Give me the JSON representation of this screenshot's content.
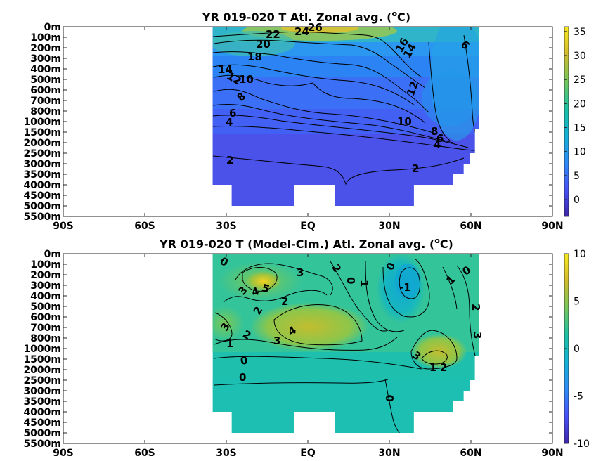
{
  "chart_data": [
    {
      "type": "heatmap",
      "title_main": "YR 019-020 T Atl. Zonal avg. (",
      "title_unit_sup": "o",
      "title_unit_end": "C)",
      "x_tick_labels": [
        "90S",
        "60S",
        "30S",
        "EQ",
        "30N",
        "60N",
        "90N"
      ],
      "x_ticks": [
        -90,
        -60,
        -30,
        0,
        30,
        60,
        90
      ],
      "y_tick_labels": [
        "0m",
        "100m",
        "200m",
        "300m",
        "400m",
        "500m",
        "600m",
        "700m",
        "800m",
        "1000m",
        "1500m",
        "2000m",
        "2500m",
        "3000m",
        "3500m",
        "4000m",
        "4500m",
        "5000m",
        "5500m"
      ],
      "colorbar": {
        "ticks": [
          35,
          30,
          25,
          20,
          15,
          10,
          5,
          0
        ],
        "range": [
          -3.5,
          36
        ]
      },
      "colormap": [
        "#3e26a8",
        "#4751f5",
        "#2d8cf5",
        "#13b1d6",
        "#1bc0a3",
        "#74c65a",
        "#d1bb2d",
        "#f9e920"
      ],
      "contour_labels": [
        "26",
        "24",
        "22",
        "20",
        "18",
        "16",
        "14",
        "14",
        "12",
        "12",
        "10",
        "10",
        "8",
        "8",
        "6",
        "6",
        "6",
        "4",
        "4",
        "2",
        "2"
      ],
      "ocean_extent_lat": [
        -35,
        63
      ]
    },
    {
      "type": "heatmap",
      "title_main": "YR 019-020 T (Model-Clm.) Atl. Zonal avg. (",
      "title_unit_sup": "o",
      "title_unit_end": "C)",
      "x_tick_labels": [
        "90S",
        "60S",
        "30S",
        "EQ",
        "30N",
        "60N",
        "90N"
      ],
      "x_ticks": [
        -90,
        -60,
        -30,
        0,
        30,
        60,
        90
      ],
      "y_tick_labels": [
        "0m",
        "100m",
        "200m",
        "300m",
        "400m",
        "500m",
        "600m",
        "700m",
        "800m",
        "1000m",
        "1500m",
        "2000m",
        "2500m",
        "3000m",
        "3500m",
        "4000m",
        "4500m",
        "5000m",
        "5500m"
      ],
      "colorbar": {
        "ticks": [
          10,
          5,
          0,
          -5,
          -10
        ],
        "range": [
          -10,
          10
        ]
      },
      "colormap": [
        "#3e26a8",
        "#4751f5",
        "#2d8cf5",
        "#13b1d6",
        "#1bc0a3",
        "#74c65a",
        "#d1bb2d",
        "#f9e920"
      ],
      "contour_labels": [
        "0",
        "3",
        "2",
        "0",
        "1",
        "0",
        "-1",
        "1",
        "3",
        "4",
        "5",
        "2",
        "2",
        "3",
        "4",
        "2",
        "3",
        "1",
        "0",
        "0",
        "3",
        "1",
        "2",
        "3",
        "2",
        "0",
        "0"
      ],
      "ocean_extent_lat": [
        -35,
        63
      ]
    }
  ]
}
